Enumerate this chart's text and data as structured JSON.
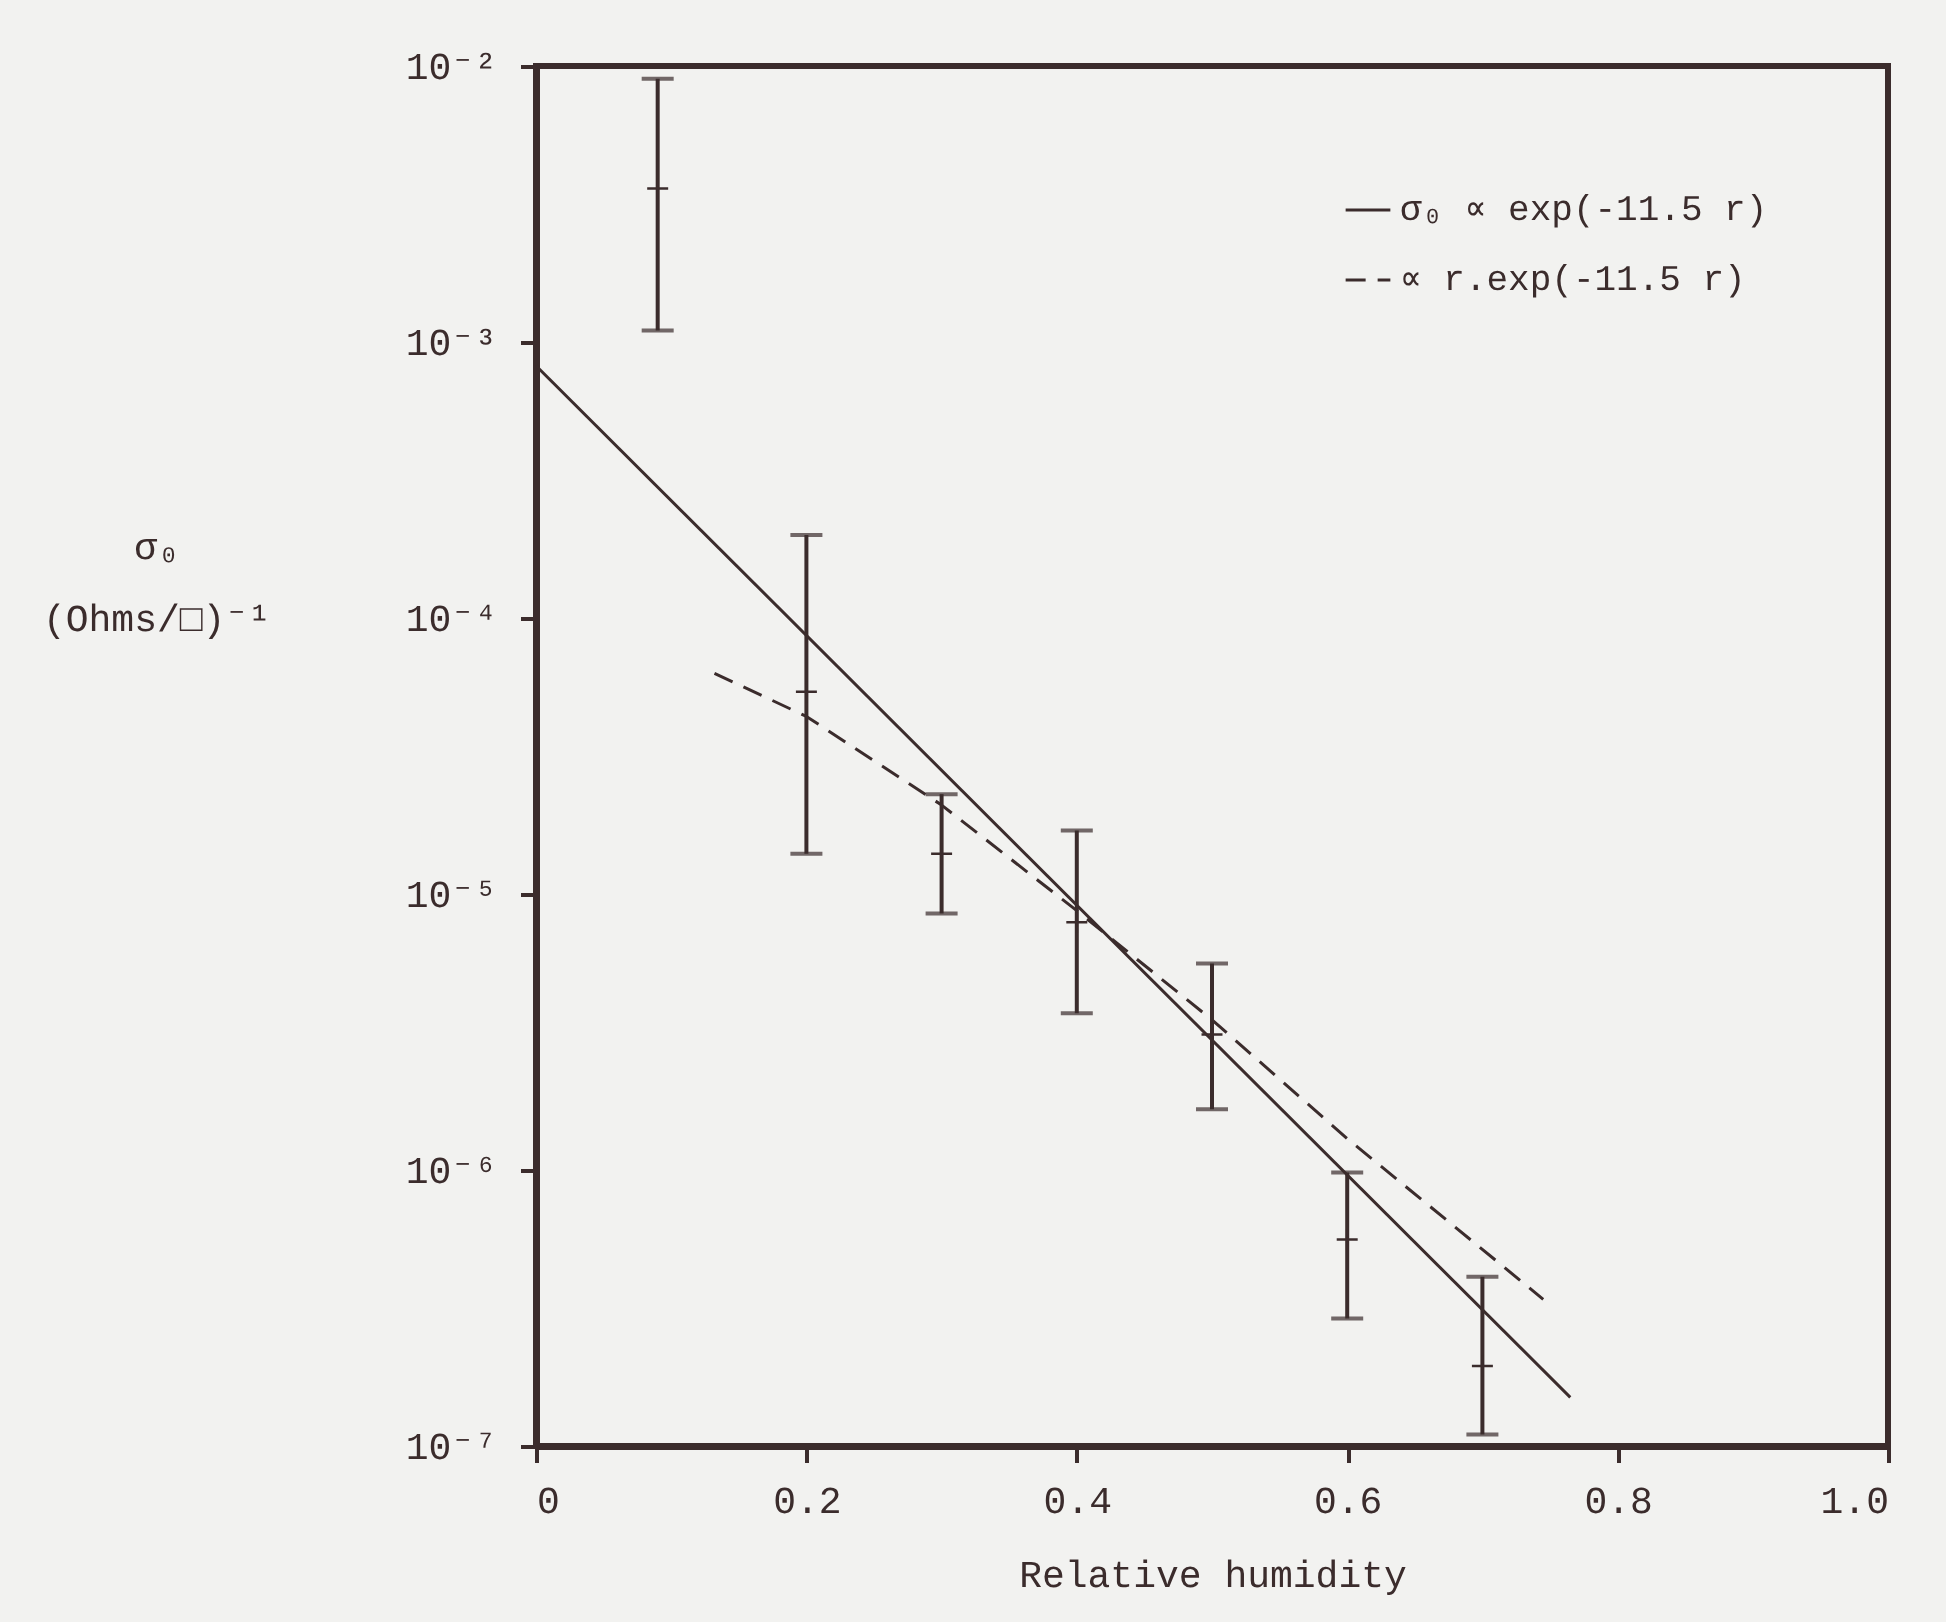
{
  "chart_data": {
    "type": "line",
    "xlabel": "Relative humidity",
    "ylabel": "σ₀\n(Ohms/□)⁻¹",
    "log": "y",
    "grid": false,
    "legend": "top right",
    "xlim": [
      0,
      1
    ],
    "ylim": [
      1e-07,
      0.01
    ],
    "xticks": [
      0,
      0.2,
      0.4,
      0.6,
      0.8,
      {
        "value": 1,
        "label": "1.0"
      }
    ],
    "yticks": [
      {
        "value": 1e-07,
        "label": "10⁻⁷"
      },
      {
        "value": 1e-06,
        "label": "10⁻⁶"
      },
      {
        "value": 1e-05,
        "label": "10⁻⁵"
      },
      {
        "value": 0.0001,
        "label": "10⁻⁴"
      },
      {
        "value": 0.001,
        "label": "10⁻³"
      },
      {
        "value": 0.01,
        "label": "10⁻²"
      }
    ],
    "series": [
      {
        "type": "scatter",
        "color": "#3b2c2c",
        "marker": "cross",
        "x": [
          0.09,
          0.2,
          0.3,
          0.4,
          0.5,
          0.6,
          0.7
        ],
        "values": [
          0.0036,
          5.4e-05,
          1.4e-05,
          7.9e-06,
          3.1e-06,
          5.6e-07,
          1.95e-07
        ],
        "errors": [
          [
            0.0011,
            0.009
          ],
          [
            1.4e-05,
            0.0002
          ],
          [
            8.5e-06,
            2.3e-05
          ],
          [
            3.7e-06,
            1.7e-05
          ],
          [
            1.66e-06,
            5.6e-06
          ],
          [
            2.9e-07,
            9.8e-07
          ],
          [
            1.1e-07,
            4.1e-07
          ]
        ]
      },
      {
        "type": "line",
        "name": "σ₀ ∝ exp(-11.5 r)",
        "color": "#3b2c2c",
        "line_style": "solid",
        "x": [
          0,
          0.765
        ],
        "values": [
          0.00082,
          1.5e-07
        ]
      },
      {
        "type": "line",
        "name": "∝ r.exp(-11.5 r)",
        "color": "#3b2c2c",
        "line_style": "dashed",
        "x": [
          0.132,
          0.2,
          0.3,
          0.4,
          0.5,
          0.6,
          0.745
        ],
        "values": [
          6.3e-05,
          4.4e-05,
          2.1e-05,
          8.7e-06,
          3.5e-06,
          1.3e-06,
          3.4e-07
        ]
      }
    ]
  }
}
